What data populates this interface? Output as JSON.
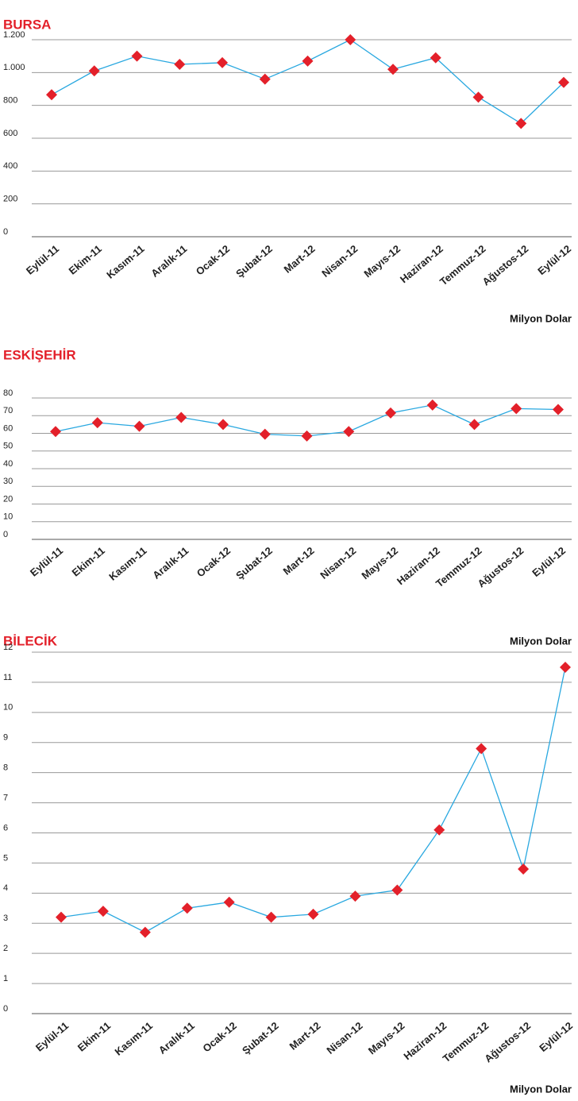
{
  "chart_data": [
    {
      "type": "line",
      "title": "BURSA",
      "unit": "Milyon Dolar",
      "categories": [
        "Eylül-11",
        "Ekim-11",
        "Kasım-11",
        "Aralık-11",
        "Ocak-12",
        "Şubat-12",
        "Mart-12",
        "Nisan-12",
        "Mayıs-12",
        "Haziran-12",
        "Temmuz-12",
        "Ağustos-12",
        "Eylül-12"
      ],
      "series": [
        {
          "name": "BURSA",
          "color": "#29a8e0",
          "marker_color": "#e3202a",
          "values": [
            865,
            1010,
            1100,
            1050,
            1060,
            960,
            1070,
            1200,
            1020,
            1090,
            850,
            690,
            940
          ]
        }
      ],
      "ylim": [
        0,
        1200
      ],
      "yticks": [
        0,
        200,
        400,
        600,
        800,
        {
          "value": 1000,
          "label": "1.000"
        },
        {
          "value": 1200,
          "label": "1.200"
        }
      ],
      "grid": true
    },
    {
      "type": "line",
      "title": "ESKİŞEHİR",
      "unit": "Milyon Dolar",
      "categories": [
        "Eylül-11",
        "Ekim-11",
        "Kasım-11",
        "Aralık-11",
        "Ocak-12",
        "Şubat-12",
        "Mart-12",
        "Nisan-12",
        "Mayıs-12",
        "Haziran-12",
        "Temmuz-12",
        "Ağustos-12",
        "Eylül-12"
      ],
      "series": [
        {
          "name": "ESKİŞEHİR",
          "color": "#29a8e0",
          "marker_color": "#e3202a",
          "values": [
            61,
            66,
            64,
            69,
            65,
            59.5,
            58.5,
            61,
            71.5,
            76,
            65,
            74,
            73.5
          ]
        }
      ],
      "ylim": [
        0,
        80
      ],
      "yticks": [
        0,
        10,
        20,
        30,
        40,
        50,
        60,
        70,
        80
      ],
      "grid": true
    },
    {
      "type": "line",
      "title": "BİLECİK",
      "unit": "Milyon Dolar",
      "categories": [
        "Eylül-11",
        "Ekim-11",
        "Kasım-11",
        "Aralık-11",
        "Ocak-12",
        "Şubat-12",
        "Mart-12",
        "Nisan-12",
        "Mayıs-12",
        "Haziran-12",
        "Temmuz-12",
        "Ağustos-12",
        "Eylül-12"
      ],
      "series": [
        {
          "name": "BİLECİK",
          "color": "#29a8e0",
          "marker_color": "#e3202a",
          "values": [
            3.2,
            3.4,
            2.7,
            3.5,
            3.7,
            3.2,
            3.3,
            3.9,
            4.1,
            6.1,
            8.8,
            4.8,
            11.5
          ]
        }
      ],
      "ylim": [
        0,
        12
      ],
      "yticks": [
        0,
        1,
        2,
        3,
        4,
        5,
        6,
        7,
        8,
        9,
        10,
        11,
        12
      ],
      "grid": true
    }
  ]
}
